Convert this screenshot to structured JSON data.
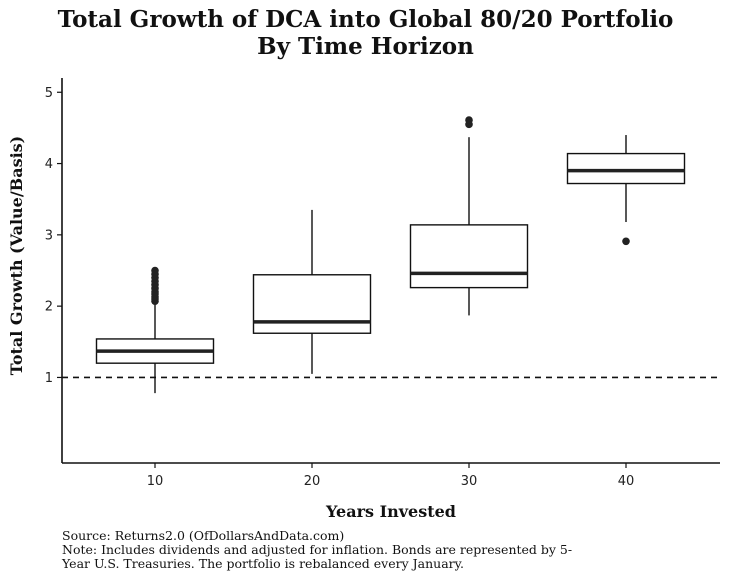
{
  "chart_data": {
    "type": "boxplot",
    "title": "Total Growth of DCA into Global 80/20 Portfolio",
    "subtitle": "By Time Horizon",
    "xlabel": "Years Invested",
    "ylabel": "Total Growth (Value/Basis)",
    "categories": [
      "10",
      "20",
      "30",
      "40"
    ],
    "ylim": [
      -0.2,
      5.2
    ],
    "yticks": [
      "1",
      "2",
      "3",
      "4",
      "5"
    ],
    "reference_line": {
      "y": 1,
      "style": "dashed"
    },
    "boxes": [
      {
        "category": "10",
        "min": 0.78,
        "q1": 1.2,
        "median": 1.37,
        "q3": 1.54,
        "max": 2.03,
        "outliers": [
          2.07,
          2.1,
          2.13,
          2.17,
          2.2,
          2.25,
          2.3,
          2.35,
          2.4,
          2.45,
          2.5
        ]
      },
      {
        "category": "20",
        "min": 1.05,
        "q1": 1.62,
        "median": 1.78,
        "q3": 2.44,
        "max": 3.35,
        "outliers": []
      },
      {
        "category": "30",
        "min": 1.87,
        "q1": 2.26,
        "median": 2.46,
        "q3": 3.14,
        "max": 4.37,
        "outliers": [
          4.55,
          4.61
        ]
      },
      {
        "category": "40",
        "min": 3.18,
        "q1": 3.72,
        "median": 3.9,
        "q3": 4.14,
        "max": 4.4,
        "outliers": [
          2.91
        ]
      }
    ]
  },
  "footnotes": {
    "source": "Source: Returns2.0 (OfDollarsAndData.com)",
    "note_line1": "Note: Includes dividends and adjusted for inflation. Bonds are represented by 5-",
    "note_line2": "Year U.S. Treasuries. The portfolio is rebalanced every January."
  }
}
